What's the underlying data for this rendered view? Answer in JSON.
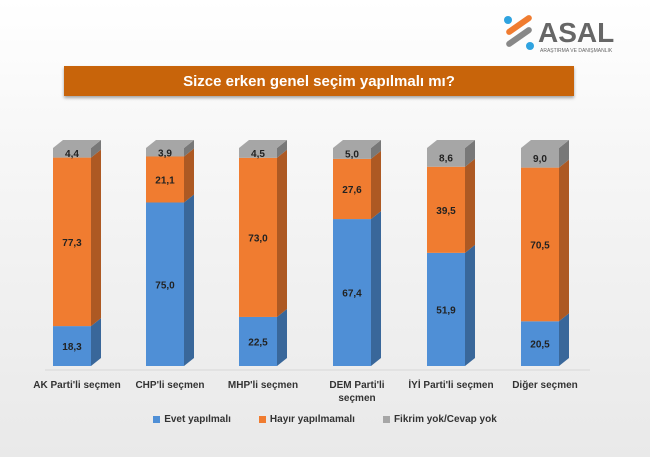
{
  "logo": {
    "text": "ASAL",
    "subtext": "ARAŞTIRMA VE DANIŞMANLIK"
  },
  "chart_data": {
    "type": "bar",
    "stacked": true,
    "title": "Sizce erken genel seçim yapılmalı mı?",
    "categories": [
      "AK Parti'li seçmen",
      "CHP'li seçmen",
      "MHP'li seçmen",
      "DEM Parti'li seçmen",
      "İYİ Parti'li seçmen",
      "Diğer seçmen"
    ],
    "series": [
      {
        "name": "Evet yapılmalı",
        "color": "#4f8fd6",
        "values": [
          18.3,
          75.0,
          22.5,
          67.4,
          51.9,
          20.5
        ]
      },
      {
        "name": "Hayır yapılmamalı",
        "color": "#f07c30",
        "values": [
          77.3,
          21.1,
          73.0,
          27.6,
          39.5,
          70.5
        ]
      },
      {
        "name": "Fikrim yok/Cevap yok",
        "color": "#a6a6a6",
        "values": [
          4.4,
          3.9,
          4.5,
          5.0,
          8.6,
          9.0
        ]
      }
    ],
    "ylim": [
      0,
      100
    ],
    "legend": "bottom",
    "grid": false,
    "style": "3d-column"
  }
}
